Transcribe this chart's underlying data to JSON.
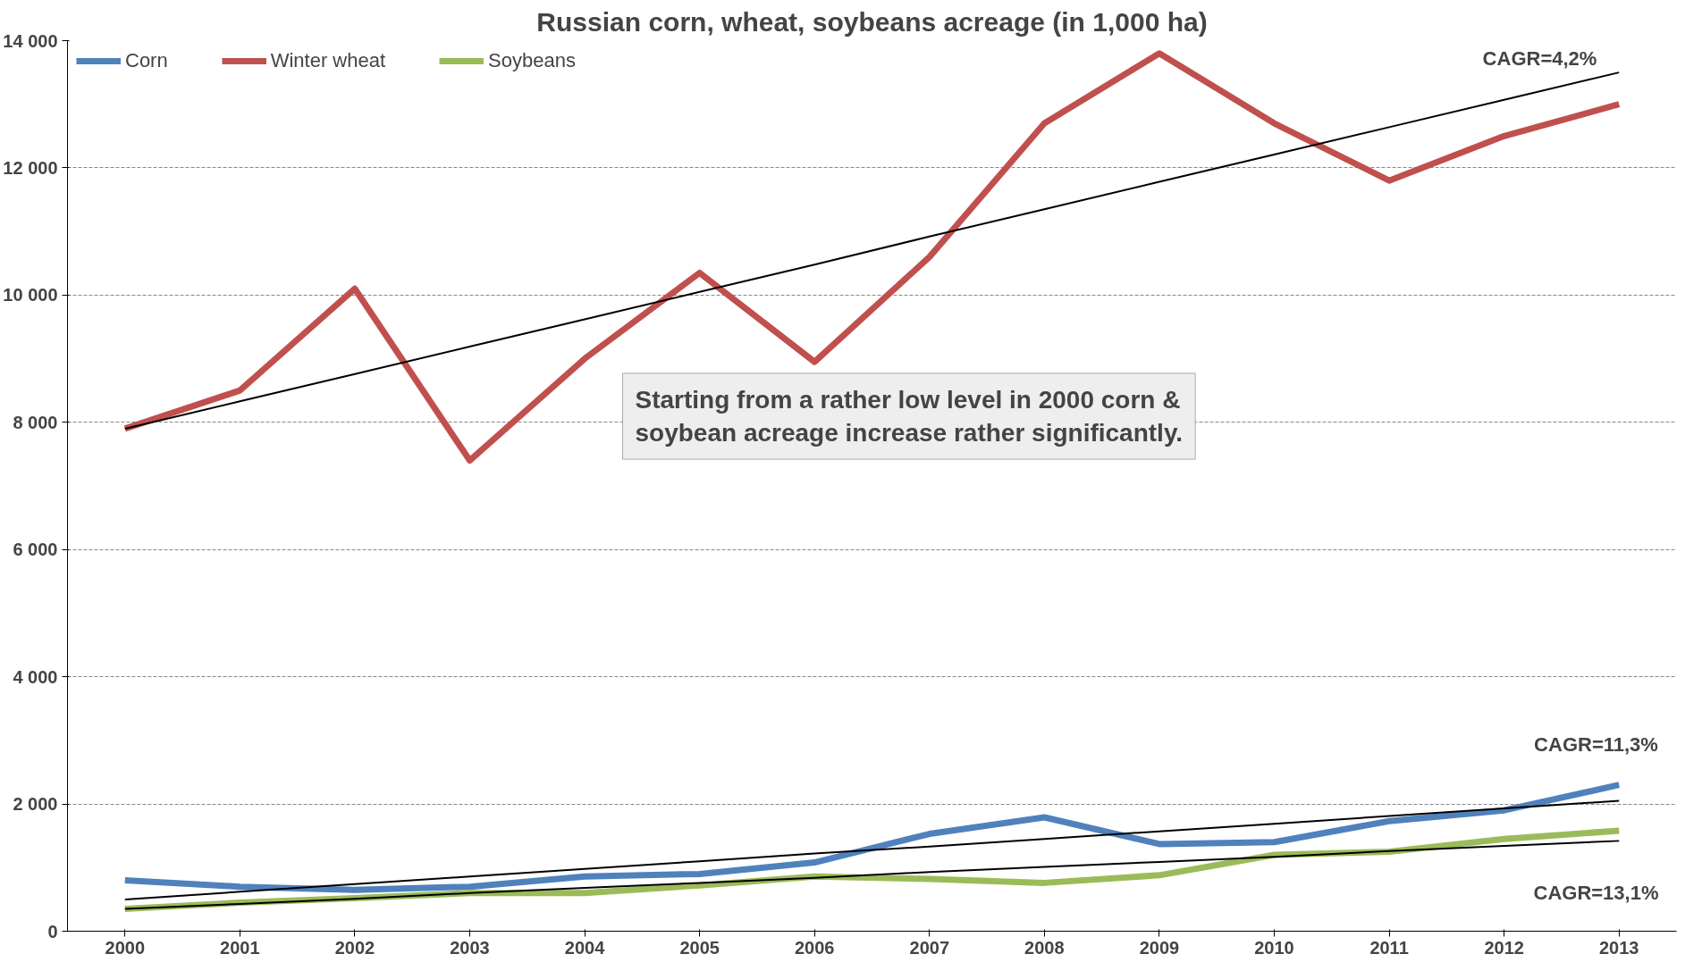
{
  "chart_data": {
    "type": "line",
    "title": "Russian corn, wheat, soybeans acreage (in 1,000 ha)",
    "x": [
      2000,
      2001,
      2002,
      2003,
      2004,
      2005,
      2006,
      2007,
      2008,
      2009,
      2010,
      2011,
      2012,
      2013
    ],
    "series": [
      {
        "name": "Corn",
        "color": "#4f81bd",
        "values": [
          800,
          700,
          650,
          700,
          860,
          900,
          1080,
          1530,
          1790,
          1370,
          1400,
          1730,
          1900,
          2300
        ]
      },
      {
        "name": "Winter wheat",
        "color": "#c0504d",
        "values": [
          7900,
          8500,
          10100,
          7400,
          9000,
          10350,
          8950,
          10600,
          12700,
          13800,
          12700,
          11800,
          12500,
          13000
        ]
      },
      {
        "name": "Soybeans",
        "color": "#9bbb59",
        "values": [
          350,
          450,
          520,
          600,
          600,
          720,
          860,
          820,
          760,
          880,
          1200,
          1250,
          1450,
          1580
        ]
      },
      {
        "type": "line",
        "color": "#000000",
        "values": [
          7900,
          8330,
          8760,
          9190,
          9620,
          10050,
          10480,
          10920,
          11350,
          11780,
          12210,
          12640,
          13070,
          13500
        ]
      },
      {
        "type": "line",
        "color": "#000000",
        "values": [
          500,
          620,
          740,
          860,
          980,
          1100,
          1220,
          1330,
          1450,
          1570,
          1690,
          1810,
          1930,
          2050
        ]
      },
      {
        "type": "line",
        "color": "#000000",
        "values": [
          350,
          430,
          510,
          600,
          680,
          760,
          840,
          930,
          1010,
          1090,
          1170,
          1260,
          1340,
          1420
        ]
      }
    ],
    "xlim": [
      1999.5,
      2013.5
    ],
    "xticks": [
      2000,
      2001,
      2002,
      2003,
      2004,
      2005,
      2006,
      2007,
      2008,
      2009,
      2010,
      2011,
      2012,
      2013
    ],
    "ylim": [
      0,
      14000
    ],
    "yticks": [
      {
        "value": 0,
        "label": "0"
      },
      {
        "value": 2000,
        "label": "2 000"
      },
      {
        "value": 4000,
        "label": "4 000"
      },
      {
        "value": 6000,
        "label": "6 000"
      },
      {
        "value": 8000,
        "label": "8 000"
      },
      {
        "value": 10000,
        "label": "10 000"
      },
      {
        "value": 12000,
        "label": "12 000"
      },
      {
        "value": 14000,
        "label": "14 000"
      }
    ],
    "grid": "y",
    "legend": "top left",
    "marker": "none",
    "line_style": "solid",
    "annotations": [
      "CAGR=4,2%",
      "CAGR=11,3%",
      "CAGR=13,1%",
      "Starting from a rather low level in 2000 corn &\nsoybean acreage increase rather significantly."
    ]
  }
}
